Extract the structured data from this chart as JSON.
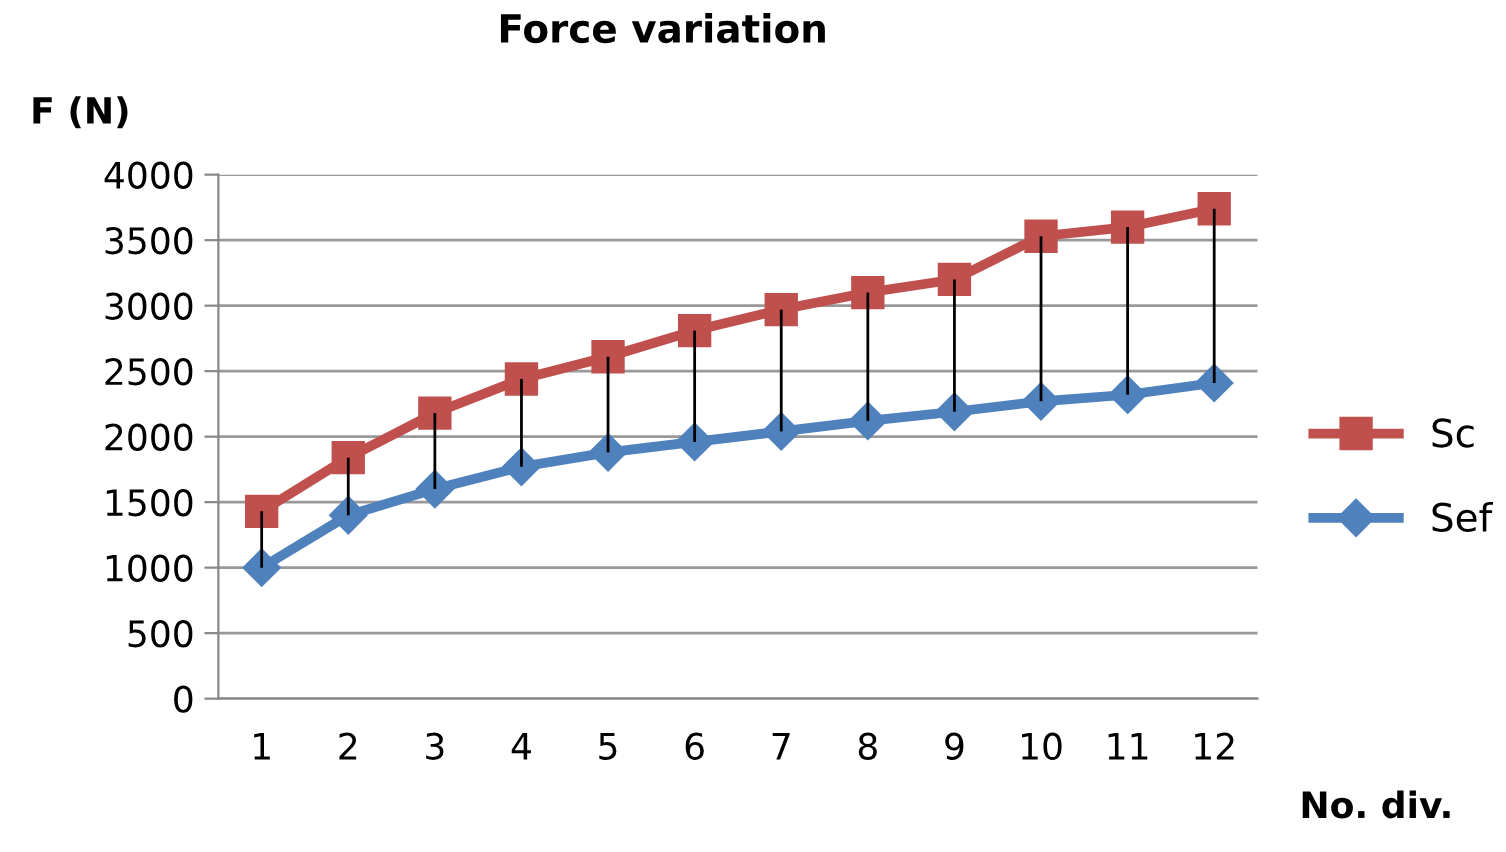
{
  "chart_data": {
    "type": "line",
    "title": "Force variation",
    "xlabel": "No. div.",
    "ylabel": "F (N)",
    "categories": [
      "1",
      "2",
      "3",
      "4",
      "5",
      "6",
      "7",
      "8",
      "9",
      "10",
      "11",
      "12"
    ],
    "series": [
      {
        "name": "Sc",
        "color": "#c0504d",
        "marker": "square",
        "values": [
          1430,
          1840,
          2180,
          2440,
          2610,
          2810,
          2970,
          3100,
          3200,
          3530,
          3600,
          3740
        ]
      },
      {
        "name": "Sef",
        "color": "#4f81bd",
        "marker": "diamond",
        "values": [
          1000,
          1400,
          1600,
          1770,
          1880,
          1960,
          2040,
          2120,
          2190,
          2270,
          2320,
          2410
        ],
        "errors": [
          [
            1000,
            1430
          ],
          [
            1400,
            1840
          ],
          [
            1600,
            2180
          ],
          [
            1770,
            2440
          ],
          [
            1880,
            2610
          ],
          [
            1960,
            2810
          ],
          [
            2040,
            2970
          ],
          [
            2120,
            3100
          ],
          [
            2190,
            3200
          ],
          [
            2270,
            3530
          ],
          [
            2320,
            3600
          ],
          [
            2410,
            3740
          ]
        ]
      }
    ],
    "ylim": [
      0,
      4000
    ],
    "yticks": [
      0,
      500,
      1000,
      1500,
      2000,
      2500,
      3000,
      3500,
      4000
    ],
    "grid": "y",
    "legend": "right",
    "line_style": "solid"
  }
}
